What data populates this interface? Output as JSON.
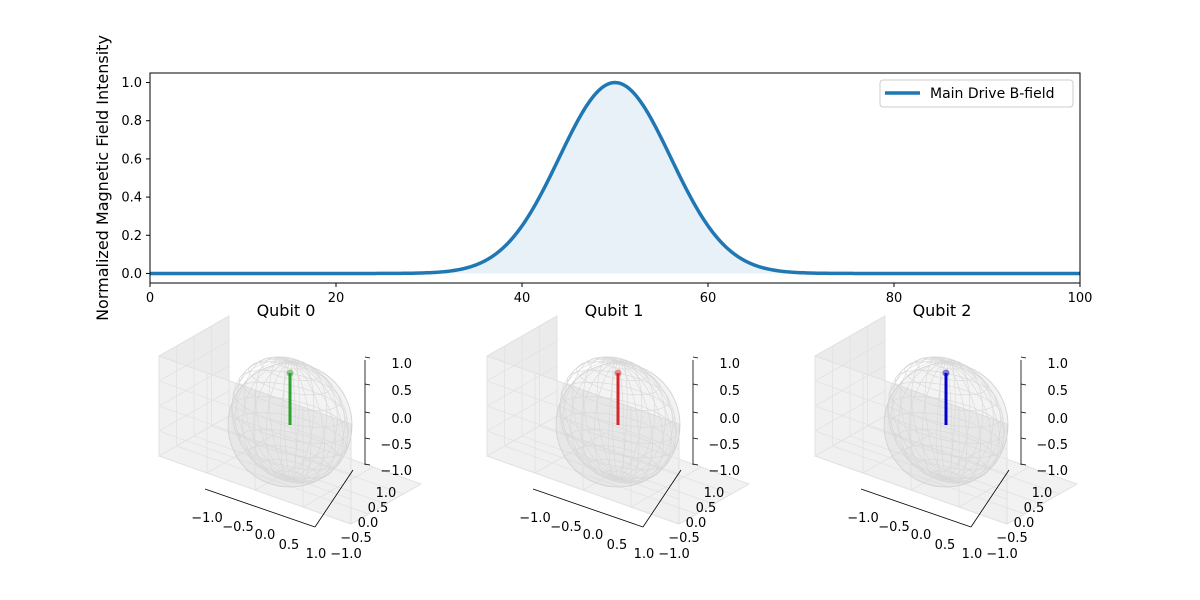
{
  "chart_data": [
    {
      "type": "area",
      "ylabel": "Normalized Magnetic Field Intensity",
      "xlabel": "",
      "xlim": [
        0,
        100
      ],
      "ylim": [
        -0.05,
        1.05
      ],
      "xticks": [
        0,
        20,
        40,
        60,
        80,
        100
      ],
      "yticks": [
        0.0,
        0.2,
        0.4,
        0.6,
        0.8,
        1.0
      ],
      "xtick_labels": [
        "0",
        "20",
        "40",
        "60",
        "80",
        "100"
      ],
      "ytick_labels": [
        "0.0",
        "0.2",
        "0.4",
        "0.6",
        "0.8",
        "1.0"
      ],
      "series": [
        {
          "name": "Main Drive B-field",
          "color": "#1f77b4",
          "function": "gaussian",
          "center": 50,
          "sigma": 6,
          "amplitude": 1.0,
          "x_range": [
            0,
            100
          ]
        }
      ],
      "legend": {
        "placement": "top-right",
        "entries": [
          "Main Drive B-field"
        ]
      }
    },
    {
      "type": "bloch-sphere",
      "title": "Qubit 0",
      "vector": {
        "x": 0.0,
        "y": 0.0,
        "z": 1.0
      },
      "vector_color": "#2ca02c",
      "axis_ranges": {
        "x": [
          -1,
          1
        ],
        "y": [
          -1,
          1
        ],
        "z": [
          -1,
          1
        ]
      },
      "xtick_labels": [
        "−1.0",
        "−0.5",
        "0.0",
        "0.5",
        "1.0"
      ],
      "ytick_labels": [
        "−1.0",
        "−0.5",
        "0.0",
        "0.5",
        "1.0"
      ],
      "ztick_labels": [
        "−1.0",
        "−0.5",
        "0.0",
        "0.5",
        "1.0"
      ]
    },
    {
      "type": "bloch-sphere",
      "title": "Qubit 1",
      "vector": {
        "x": 0.0,
        "y": 0.0,
        "z": 1.0
      },
      "vector_color": "#d62728",
      "axis_ranges": {
        "x": [
          -1,
          1
        ],
        "y": [
          -1,
          1
        ],
        "z": [
          -1,
          1
        ]
      },
      "xtick_labels": [
        "−1.0",
        "−0.5",
        "0.0",
        "0.5",
        "1.0"
      ],
      "ytick_labels": [
        "−1.0",
        "−0.5",
        "0.0",
        "0.5",
        "1.0"
      ],
      "ztick_labels": [
        "−1.0",
        "−0.5",
        "0.0",
        "0.5",
        "1.0"
      ]
    },
    {
      "type": "bloch-sphere",
      "title": "Qubit 2",
      "vector": {
        "x": 0.0,
        "y": 0.0,
        "z": 1.0
      },
      "vector_color": "#0000cc",
      "axis_ranges": {
        "x": [
          -1,
          1
        ],
        "y": [
          -1,
          1
        ],
        "z": [
          -1,
          1
        ]
      },
      "xtick_labels": [
        "−1.0",
        "−0.5",
        "0.0",
        "0.5",
        "1.0"
      ],
      "ytick_labels": [
        "−1.0",
        "−0.5",
        "0.0",
        "0.5",
        "1.0"
      ],
      "ztick_labels": [
        "−1.0",
        "−0.5",
        "0.0",
        "0.5",
        "1.0"
      ]
    }
  ]
}
